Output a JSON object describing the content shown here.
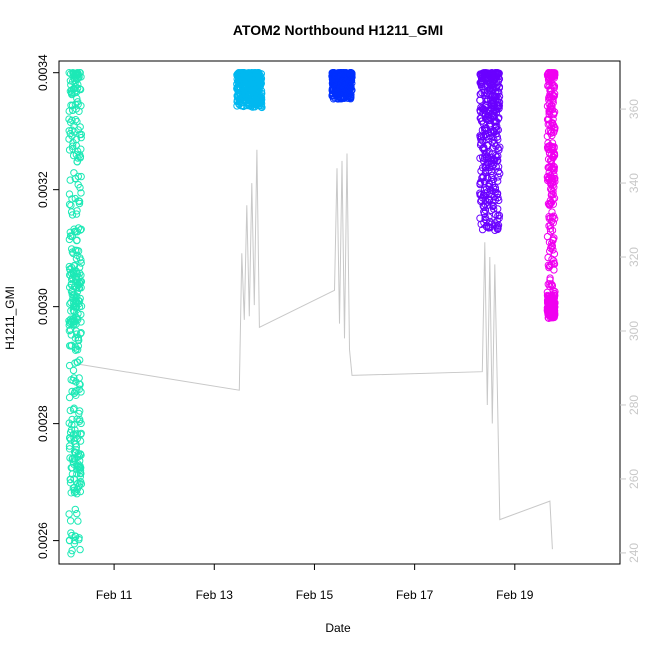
{
  "chart_data": {
    "type": "scatter",
    "title": "ATOM2 Northbound H1211_GMI",
    "xlabel": "Date",
    "ylabel": "H1211_GMI",
    "x_ticks": [
      "Feb 11",
      "Feb 13",
      "Feb 15",
      "Feb 17",
      "Feb 19"
    ],
    "x_tick_days": [
      11,
      13,
      15,
      17,
      19
    ],
    "xlim": [
      9.9,
      21.1
    ],
    "ylim": [
      0.00256,
      0.00342
    ],
    "y_ticks": [
      "0.0026",
      "0.0028",
      "0.0030",
      "0.0032",
      "0.0034"
    ],
    "y_tick_values": [
      0.0026,
      0.0028,
      0.003,
      0.0032,
      0.0034
    ],
    "y2lim": [
      237,
      373
    ],
    "y2_ticks": [
      "240",
      "260",
      "280",
      "300",
      "320",
      "340",
      "360"
    ],
    "y2_tick_values": [
      240,
      260,
      280,
      300,
      320,
      340,
      360
    ],
    "grid": false,
    "series": [
      {
        "color": "#1de9b6",
        "x_range": [
          10.1,
          10.35
        ],
        "y_range": [
          0.002575,
          0.0034
        ],
        "dense_bands": [
          [
            0.00297,
            0.00307
          ],
          [
            0.00268,
            0.00279
          ]
        ]
      },
      {
        "color": "#00b8f0",
        "x_range": [
          13.45,
          13.95
        ],
        "y_range": [
          0.00334,
          0.0034
        ],
        "dense_bands": []
      },
      {
        "color": "#0030ff",
        "x_range": [
          15.35,
          15.75
        ],
        "y_range": [
          0.003355,
          0.0034
        ],
        "dense_bands": []
      },
      {
        "color": "#6a00ff",
        "x_range": [
          18.3,
          18.7
        ],
        "y_range": [
          0.00313,
          0.0034
        ],
        "dense_bands": []
      },
      {
        "color": "#f000f0",
        "x_range": [
          19.65,
          19.8
        ],
        "y_range": [
          0.002985,
          0.0034
        ],
        "dense_bands": [
          [
            0.00298,
            0.00302
          ]
        ]
      }
    ],
    "altitude_line": {
      "color": "#c8c8c8",
      "points": [
        [
          10.3,
          291
        ],
        [
          13.5,
          284
        ],
        [
          13.55,
          321
        ],
        [
          13.6,
          303
        ],
        [
          13.65,
          334
        ],
        [
          13.7,
          304
        ],
        [
          13.75,
          340
        ],
        [
          13.8,
          307
        ],
        [
          13.85,
          349
        ],
        [
          13.9,
          301
        ],
        [
          15.4,
          311
        ],
        [
          15.45,
          344
        ],
        [
          15.5,
          302
        ],
        [
          15.55,
          346
        ],
        [
          15.6,
          298
        ],
        [
          15.65,
          348
        ],
        [
          15.7,
          295
        ],
        [
          15.75,
          288
        ],
        [
          18.35,
          289
        ],
        [
          18.4,
          324
        ],
        [
          18.45,
          280
        ],
        [
          18.5,
          320
        ],
        [
          18.55,
          275
        ],
        [
          18.6,
          318
        ],
        [
          18.65,
          285
        ],
        [
          18.7,
          249
        ],
        [
          19.7,
          254
        ],
        [
          19.75,
          241
        ]
      ]
    }
  }
}
